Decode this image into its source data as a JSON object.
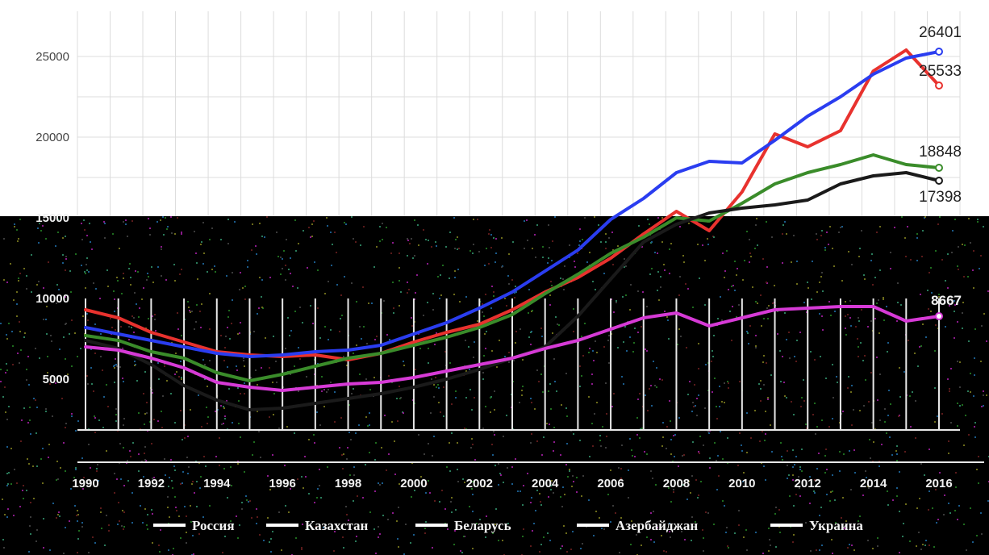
{
  "colors": {
    "background": "#ffffff",
    "noise_band": "#000000",
    "russia": "#e8322e",
    "kazakhstan": "#2a3df0",
    "belarus": "#3a8c2a",
    "azerbaijan": "#1a1a1a",
    "ukraine": "#d63ad6"
  },
  "chart_data": {
    "type": "line",
    "title": "",
    "xlabel": "",
    "ylabel": "",
    "ylim": [
      0,
      27000
    ],
    "grid": true,
    "legend_position": "bottom",
    "x": [
      1990,
      1991,
      1992,
      1993,
      1994,
      1995,
      1996,
      1997,
      1998,
      1999,
      2000,
      2001,
      2002,
      2003,
      2004,
      2005,
      2006,
      2007,
      2008,
      2009,
      2010,
      2011,
      2012,
      2013,
      2014,
      2015,
      2016
    ],
    "x_tick_labels": [
      "1990",
      "1992",
      "1994",
      "1996",
      "1998",
      "2000",
      "2002",
      "2004",
      "2006",
      "2008",
      "2010",
      "2012",
      "2014",
      "2016"
    ],
    "y_ticks": [
      5000,
      10000,
      15000,
      20000,
      25000
    ],
    "y_tick_labels": [
      "5000",
      "10000",
      "15000",
      "20000",
      "25000"
    ],
    "series": [
      {
        "name": "Россия",
        "color_key": "russia",
        "values": [
          9300,
          8800,
          7900,
          7300,
          6700,
          6500,
          6400,
          6500,
          6200,
          6600,
          7300,
          7900,
          8400,
          9300,
          10400,
          11300,
          12500,
          14000,
          15400,
          14200,
          16600,
          20200,
          19400,
          20400,
          24100,
          25400,
          25533
        ],
        "end_label": "25533",
        "end_value_display": 23200
      },
      {
        "name": "Казахстан",
        "color_key": "kazakhstan",
        "values": [
          8200,
          7800,
          7400,
          7000,
          6600,
          6400,
          6500,
          6700,
          6800,
          7100,
          7800,
          8500,
          9400,
          10400,
          11700,
          13000,
          14900,
          16200,
          17800,
          18500,
          18400,
          19800,
          21300,
          22500,
          23900,
          24900,
          26401
        ],
        "end_label": "26401",
        "end_value_display": 25300
      },
      {
        "name": "Беларусь",
        "color_key": "belarus",
        "values": [
          7700,
          7400,
          6700,
          6300,
          5400,
          4900,
          5300,
          5800,
          6300,
          6600,
          7100,
          7600,
          8200,
          9000,
          10300,
          11500,
          12800,
          13800,
          15000,
          14800,
          15900,
          17100,
          17800,
          18300,
          18900,
          18300,
          18848
        ],
        "end_label": "18848",
        "end_value_display": 18100
      },
      {
        "name": "Азербайджан",
        "color_key": "azerbaijan",
        "values": [
          7400,
          6900,
          5900,
          4600,
          3700,
          3100,
          3200,
          3500,
          3800,
          4100,
          4500,
          5000,
          5600,
          6300,
          7000,
          8900,
          11200,
          13500,
          14600,
          15300,
          15600,
          15800,
          16100,
          17100,
          17600,
          17800,
          17398
        ],
        "end_label": "17398",
        "end_value_display": 17300
      },
      {
        "name": "Украина",
        "color_key": "ukraine",
        "values": [
          7000,
          6800,
          6300,
          5700,
          4800,
          4500,
          4300,
          4500,
          4700,
          4800,
          5100,
          5500,
          5900,
          6300,
          6900,
          7400,
          8100,
          8800,
          9100,
          8300,
          8800,
          9300,
          9400,
          9500,
          9500,
          8600,
          8667
        ],
        "end_label": "8667",
        "end_value_display": 8900
      }
    ]
  }
}
